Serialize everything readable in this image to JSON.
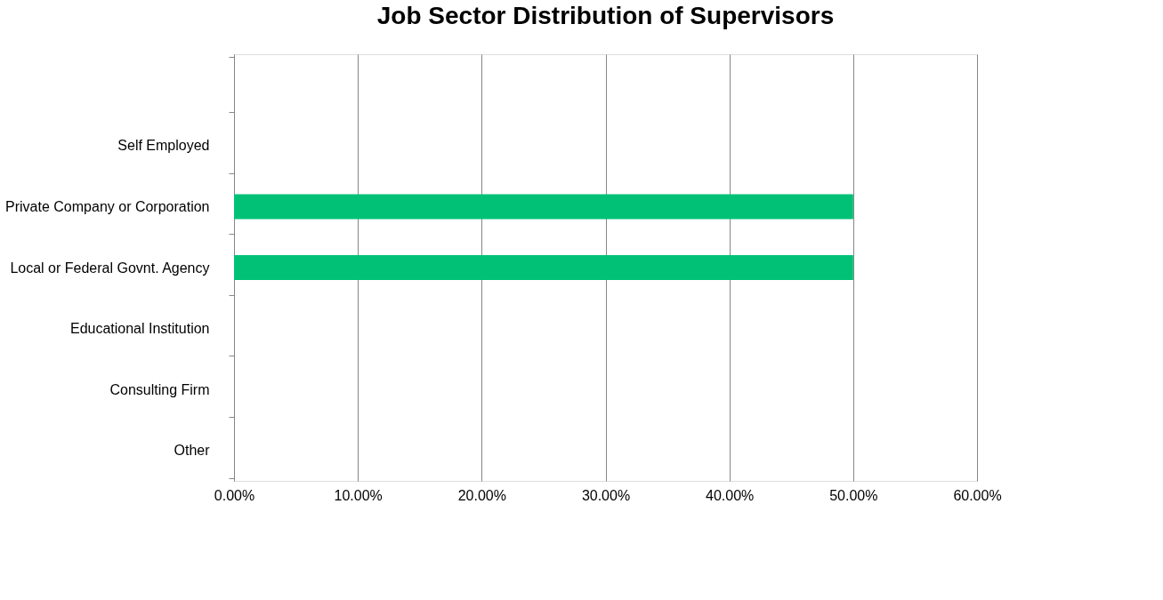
{
  "chart_data": {
    "type": "bar",
    "title": "Job Sector Distribution of Supervisors",
    "orientation": "horizontal",
    "categories": [
      null,
      "Self Employed",
      "Private Company or Corporation",
      "Local or Federal Govnt. Agency",
      "Educational Institution",
      "Consulting Firm",
      "Other"
    ],
    "values": [
      0,
      0,
      50,
      50,
      0,
      0,
      0
    ],
    "color": "#00c176",
    "xlim": [
      0,
      60
    ],
    "xticks": [
      {
        "value": 0,
        "label": "0.00%"
      },
      {
        "value": 10,
        "label": "10.00%"
      },
      {
        "value": 20,
        "label": "20.00%"
      },
      {
        "value": 30,
        "label": "30.00%"
      },
      {
        "value": 40,
        "label": "40.00%"
      },
      {
        "value": 50,
        "label": "50.00%"
      },
      {
        "value": 60,
        "label": "60.00%"
      }
    ],
    "grid": "x"
  }
}
